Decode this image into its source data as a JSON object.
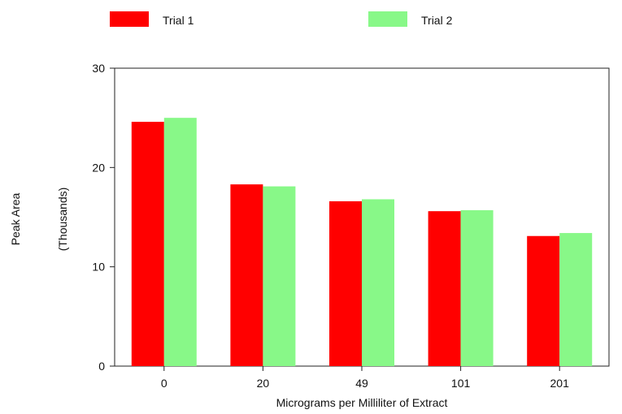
{
  "chart_data": {
    "type": "bar",
    "categories": [
      "0",
      "20",
      "49",
      "101",
      "201"
    ],
    "series": [
      {
        "name": "Trial 1",
        "color": "#ff0000",
        "values": [
          24.6,
          18.3,
          16.6,
          15.6,
          13.1
        ]
      },
      {
        "name": "Trial 2",
        "color": "#88f888",
        "values": [
          25.0,
          18.1,
          16.8,
          15.7,
          13.4
        ]
      }
    ],
    "xlabel": "Micrograms per Milliliter of Extract",
    "ylabel": "Peak Area",
    "ylabel_units": "(Thousands)",
    "ylim": [
      0,
      30
    ],
    "yticks": [
      "0",
      "10",
      "20",
      "30"
    ],
    "grid": false,
    "legend_position": "top"
  }
}
